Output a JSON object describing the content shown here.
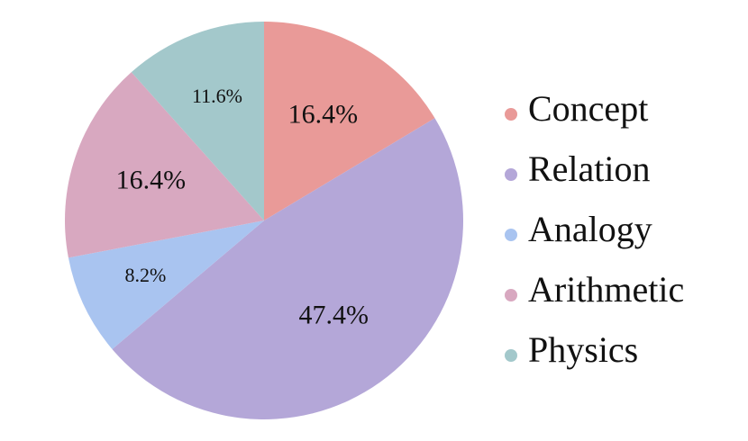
{
  "chart_data": {
    "type": "pie",
    "categories": [
      "Concept",
      "Relation",
      "Analogy",
      "Arithmetic",
      "Physics"
    ],
    "values": [
      16.4,
      47.4,
      8.2,
      16.4,
      11.6
    ],
    "value_labels": [
      "16.4%",
      "47.4%",
      "8.2%",
      "16.4%",
      "11.6%"
    ],
    "colors": [
      "#e99a98",
      "#b4a7d8",
      "#a9c4f0",
      "#d8a8c0",
      "#a3c8cb"
    ],
    "legend": "right"
  }
}
